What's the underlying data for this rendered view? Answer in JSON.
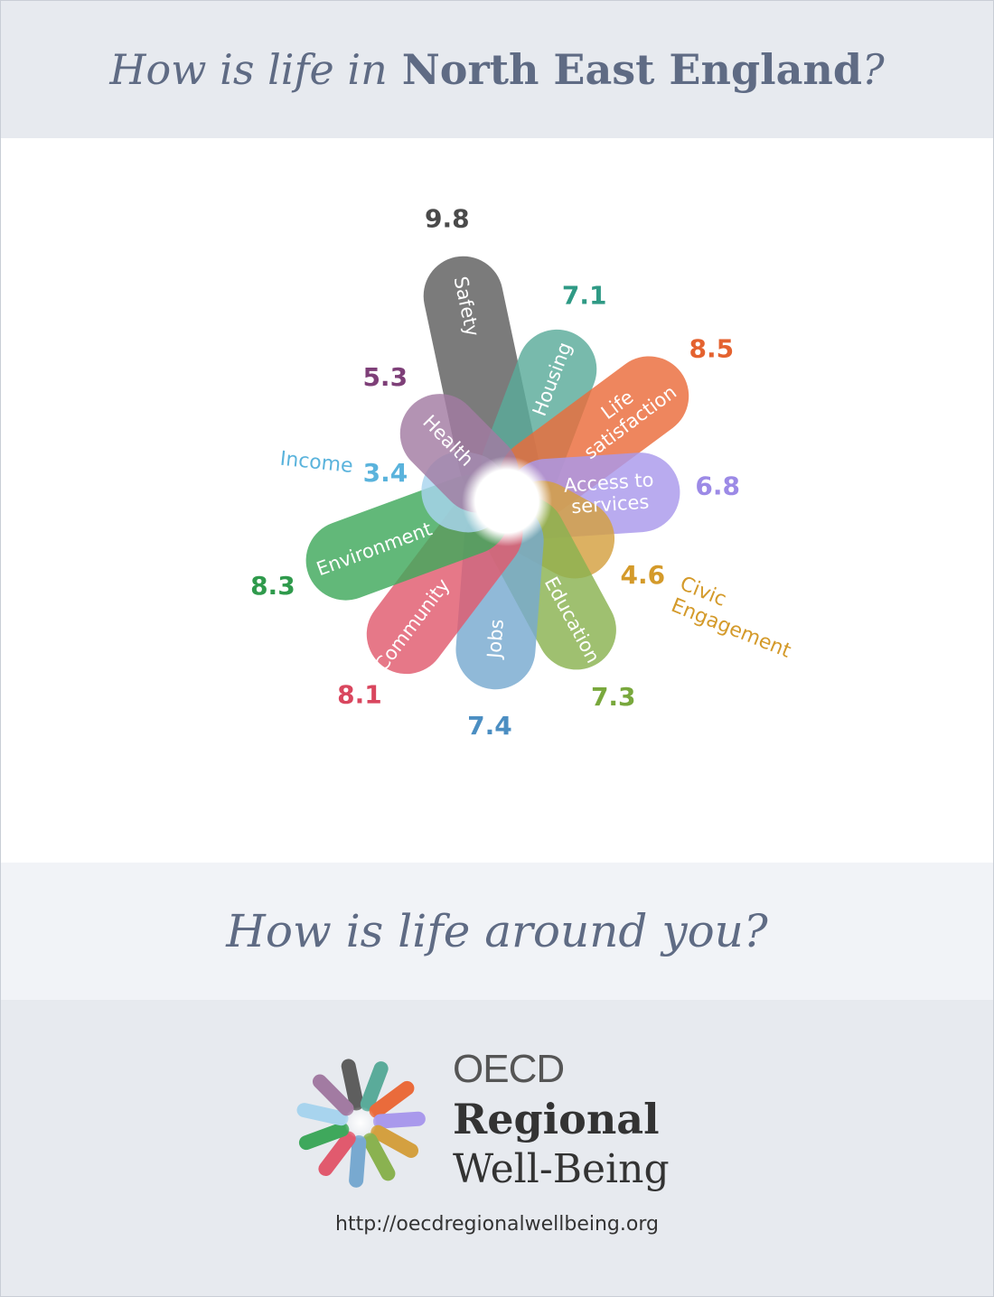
{
  "header": {
    "title_prefix": "How is life in",
    "title_region": "North East England",
    "title_suffix": "?"
  },
  "chart_data": {
    "type": "radial-petal",
    "scale": [
      0,
      10
    ],
    "series": [
      {
        "label": "Safety",
        "value": 9.8,
        "color": "#5e5e5e"
      },
      {
        "label": "Housing",
        "value": 7.1,
        "color": "#5aab9a"
      },
      {
        "label_lines": [
          "Life",
          "satisfaction"
        ],
        "label": "Life satisfaction",
        "value": 8.5,
        "color": "#ea6b3b"
      },
      {
        "label_lines": [
          "Access to",
          "services"
        ],
        "label": "Access to services",
        "value": 6.8,
        "color": "#a999ec"
      },
      {
        "label": "Civic Engagement",
        "label_lines": [
          "Civic",
          "Engagement"
        ],
        "value": 4.6,
        "color": "#d4a040",
        "label_outside": true
      },
      {
        "label": "Education",
        "value": 7.3,
        "color": "#8ab250"
      },
      {
        "label": "Jobs",
        "value": 7.4,
        "color": "#78a9d0"
      },
      {
        "label": "Community",
        "value": 8.1,
        "color": "#e15a6e"
      },
      {
        "label": "Environment",
        "value": 8.3,
        "color": "#3fa85c"
      },
      {
        "label": "Income",
        "value": 3.4,
        "color": "#a8d4ee",
        "label_outside": true
      },
      {
        "label": "Health",
        "value": 5.3,
        "color": "#a27ba2"
      }
    ],
    "value_colors": {
      "Safety": "#4a4a4a",
      "Housing": "#2f9a85",
      "Life satisfaction": "#e4622f",
      "Access to services": "#9c8ae6",
      "Civic Engagement": "#d49a2a",
      "Education": "#79a83d",
      "Jobs": "#4b8ec2",
      "Community": "#d9465e",
      "Environment": "#2f9a4c",
      "Income": "#5ab3dc",
      "Health": "#7e3f78"
    }
  },
  "question": "How is life around you?",
  "brand": {
    "line1": "OECD",
    "line2": "Regional",
    "line3": "Well-Being"
  },
  "url": "http://oecdregionalwellbeing.org"
}
